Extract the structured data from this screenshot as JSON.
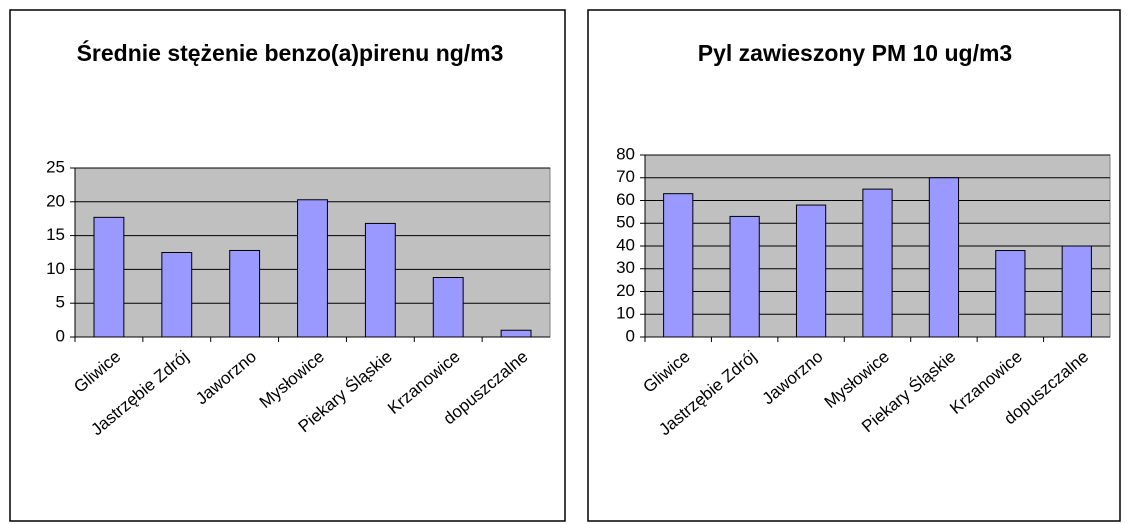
{
  "chart_data": [
    {
      "type": "bar",
      "title": "Średnie stężenie benzo(a)pirenu ng/m3",
      "categories": [
        "Gliwice",
        "Jastrzębie Zdrój",
        "Jaworzno",
        "Mysłowice",
        "Piekary Śląskie",
        "Krzanowice",
        "dopuszczalne"
      ],
      "values": [
        17.7,
        12.5,
        12.8,
        20.3,
        16.8,
        8.8,
        1
      ],
      "color": "#9999ff",
      "ylim": [
        0,
        25
      ],
      "yticks": [
        0,
        5,
        10,
        15,
        20,
        25
      ],
      "grid": true
    },
    {
      "type": "bar",
      "title": "Pyl zawieszony PM 10 ug/m3",
      "categories": [
        "Gliwice",
        "Jastrzębie Zdrój",
        "Jaworzno",
        "Mysłowice",
        "Piekary Śląskie",
        "Krzanowice",
        "dopuszczalne"
      ],
      "values": [
        63,
        53,
        58,
        65,
        70,
        38,
        40
      ],
      "color": "#9999ff",
      "ylim": [
        0,
        80
      ],
      "yticks": [
        0,
        10,
        20,
        30,
        40,
        50,
        60,
        70,
        80
      ],
      "grid": true
    }
  ]
}
